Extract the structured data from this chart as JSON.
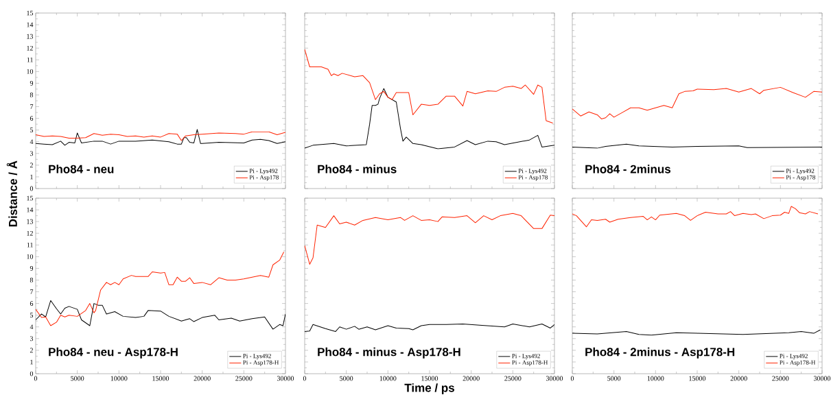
{
  "chart_data": [
    {
      "type": "line",
      "title": "Pho84 - neu",
      "ylabel": "Distance / Å",
      "legend": "bottom right",
      "tick_labels": "y",
      "xlim": [
        0,
        30000
      ],
      "ylim": [
        0,
        15
      ],
      "xticks": [
        0,
        5000,
        10000,
        15000,
        20000,
        25000,
        30000
      ],
      "yticks": [
        0,
        1,
        2,
        3,
        4,
        5,
        6,
        7,
        8,
        9,
        10,
        11,
        12,
        13,
        14,
        15
      ],
      "series": [
        {
          "name": "Pi - Lys492",
          "color": "#000000",
          "x": [
            0,
            1000,
            2000,
            3000,
            3500,
            4000,
            4700,
            5000,
            5500,
            7000,
            8000,
            9000,
            10000,
            12000,
            14000,
            16000,
            17000,
            17500,
            17800,
            18100,
            18500,
            19000,
            19400,
            19800,
            20000,
            22000,
            25000,
            26000,
            27000,
            28000,
            29000,
            30000
          ],
          "values": [
            3.85,
            3.8,
            3.75,
            4.05,
            3.7,
            3.95,
            3.9,
            4.75,
            3.9,
            4.05,
            4.05,
            3.8,
            4.05,
            4.05,
            4.15,
            4.0,
            3.8,
            3.8,
            4.35,
            4.35,
            3.95,
            3.9,
            5.05,
            3.85,
            3.85,
            3.95,
            3.9,
            4.15,
            4.2,
            4.1,
            3.85,
            4.0
          ]
        },
        {
          "name": "Pi - Asp178",
          "color": "#ff2200",
          "x": [
            0,
            1000,
            2000,
            3000,
            4000,
            5000,
            6000,
            7000,
            8000,
            9000,
            10000,
            11000,
            12000,
            13000,
            14000,
            15000,
            16000,
            17000,
            17500,
            18000,
            19000,
            20000,
            22000,
            24000,
            25000,
            26000,
            28000,
            29000,
            30000
          ],
          "values": [
            4.6,
            4.45,
            4.5,
            4.45,
            4.3,
            4.3,
            4.35,
            4.7,
            4.55,
            4.65,
            4.6,
            4.45,
            4.5,
            4.4,
            4.5,
            4.4,
            4.7,
            4.65,
            4.1,
            4.5,
            4.6,
            4.65,
            4.75,
            4.7,
            4.65,
            4.85,
            4.85,
            4.6,
            4.8
          ]
        }
      ]
    },
    {
      "type": "line",
      "title": "Pho84 - minus",
      "legend": "bottom right",
      "tick_labels": false,
      "xlim": [
        0,
        30000
      ],
      "ylim": [
        0,
        15
      ],
      "xticks": [
        0,
        5000,
        10000,
        15000,
        20000,
        25000,
        30000
      ],
      "yticks": [
        0,
        1,
        2,
        3,
        4,
        5,
        6,
        7,
        8,
        9,
        10,
        11,
        12,
        13,
        14,
        15
      ],
      "series": [
        {
          "name": "Pi - Lys492",
          "color": "#000000",
          "x": [
            0,
            1000,
            3500,
            5000,
            7400,
            7800,
            8100,
            8500,
            8800,
            9000,
            9500,
            10000,
            11000,
            11500,
            11800,
            12200,
            13000,
            14000,
            16000,
            18000,
            19500,
            20500,
            22000,
            23000,
            24000,
            27000,
            28000,
            28500,
            30000
          ],
          "values": [
            3.45,
            3.7,
            3.85,
            3.65,
            3.75,
            5.5,
            7.1,
            7.1,
            7.2,
            7.7,
            8.55,
            7.8,
            7.4,
            5.15,
            4.05,
            4.4,
            3.85,
            3.75,
            3.4,
            3.55,
            4.1,
            3.75,
            4.05,
            4.0,
            3.75,
            4.15,
            4.55,
            3.55,
            3.7
          ]
        },
        {
          "name": "Pi - Asp178",
          "color": "#ff2200",
          "x": [
            0,
            600,
            2000,
            2800,
            3200,
            3500,
            4000,
            4500,
            6000,
            7000,
            7800,
            8500,
            9000,
            9500,
            10000,
            10500,
            11000,
            12500,
            13000,
            14000,
            15000,
            16000,
            17000,
            18000,
            19000,
            19500,
            20500,
            22000,
            23000,
            24000,
            25000,
            26000,
            26500,
            27500,
            28000,
            28500,
            29000,
            29800
          ],
          "values": [
            11.9,
            10.4,
            10.4,
            10.2,
            9.65,
            9.8,
            9.65,
            9.85,
            9.55,
            9.65,
            9.05,
            7.6,
            8.1,
            8.3,
            7.8,
            7.6,
            8.2,
            8.2,
            6.3,
            7.2,
            7.1,
            7.2,
            7.9,
            7.9,
            7.05,
            8.3,
            8.1,
            8.35,
            8.3,
            8.65,
            8.75,
            8.55,
            8.85,
            8.05,
            8.85,
            8.65,
            5.8,
            5.6
          ]
        }
      ]
    },
    {
      "type": "line",
      "title": "Pho84 - 2minus",
      "legend": "bottom right",
      "tick_labels": false,
      "xlim": [
        0,
        30000
      ],
      "ylim": [
        0,
        15
      ],
      "xticks": [
        0,
        5000,
        10000,
        15000,
        20000,
        25000,
        30000
      ],
      "yticks": [
        0,
        1,
        2,
        3,
        4,
        5,
        6,
        7,
        8,
        9,
        10,
        11,
        12,
        13,
        14,
        15
      ],
      "series": [
        {
          "name": "Pi - Lys492",
          "color": "#000000",
          "x": [
            0,
            3000,
            4000,
            6500,
            8000,
            12000,
            15000,
            20000,
            21000,
            30000
          ],
          "values": [
            3.55,
            3.45,
            3.6,
            3.8,
            3.65,
            3.55,
            3.6,
            3.65,
            3.5,
            3.55
          ]
        },
        {
          "name": "Pi - Asp178",
          "color": "#ff2200",
          "x": [
            0,
            1000,
            2000,
            3000,
            3500,
            4000,
            4500,
            5000,
            6000,
            7000,
            8000,
            9000,
            10000,
            11000,
            12000,
            12800,
            13500,
            14500,
            15000,
            17000,
            18500,
            20000,
            21500,
            22500,
            23000,
            25000,
            26500,
            28000,
            29000,
            30000
          ],
          "values": [
            6.8,
            6.2,
            6.55,
            6.3,
            5.95,
            6.05,
            6.4,
            6.1,
            6.5,
            6.9,
            6.9,
            6.7,
            6.9,
            7.1,
            6.9,
            8.1,
            8.3,
            8.35,
            8.5,
            8.45,
            8.55,
            8.25,
            8.55,
            8.1,
            8.4,
            8.65,
            8.2,
            7.8,
            8.3,
            8.25
          ]
        }
      ]
    },
    {
      "type": "line",
      "title": "Pho84 - neu - Asp178-H",
      "legend": "bottom right",
      "xlim": [
        0,
        30000
      ],
      "ylim": [
        0,
        15
      ],
      "xticks": [
        0,
        5000,
        10000,
        15000,
        20000,
        25000,
        30000
      ],
      "yticks": [
        0,
        1,
        2,
        3,
        4,
        5,
        6,
        7,
        8,
        9,
        10,
        11,
        12,
        13,
        14,
        15
      ],
      "series": [
        {
          "name": "Pi - Lys492",
          "color": "#000000",
          "x": [
            0,
            700,
            1200,
            1800,
            2500,
            3000,
            3500,
            4000,
            5000,
            5500,
            6500,
            7000,
            7500,
            8000,
            8500,
            9500,
            10500,
            12000,
            13000,
            13500,
            15000,
            16000,
            17500,
            18500,
            19000,
            20000,
            21500,
            22000,
            23500,
            24500,
            26000,
            27500,
            28500,
            29300,
            29700,
            30000
          ],
          "values": [
            4.6,
            5.1,
            4.85,
            6.25,
            5.55,
            5.1,
            5.6,
            5.75,
            5.5,
            4.6,
            4.1,
            6.0,
            5.85,
            5.85,
            5.1,
            5.3,
            4.9,
            4.8,
            4.9,
            5.4,
            5.35,
            4.9,
            4.5,
            4.7,
            4.45,
            4.8,
            5.0,
            4.6,
            4.75,
            4.5,
            4.7,
            4.85,
            3.8,
            4.2,
            4.1,
            5.1
          ]
        },
        {
          "name": "Pi - Asp178-H",
          "color": "#ff2200",
          "x": [
            0,
            700,
            1200,
            1800,
            2500,
            3000,
            3500,
            4000,
            5000,
            6000,
            6500,
            7000,
            7200,
            7800,
            8500,
            9000,
            9500,
            10000,
            10500,
            11500,
            12000,
            13500,
            14000,
            15000,
            15500,
            16000,
            16500,
            17000,
            17500,
            18000,
            18500,
            19000,
            20000,
            21000,
            22000,
            23000,
            24000,
            25000,
            26000,
            27000,
            28000,
            28500,
            29300,
            29800
          ],
          "values": [
            5.5,
            4.8,
            4.85,
            4.1,
            4.4,
            5.0,
            4.85,
            5.0,
            4.9,
            5.4,
            6.0,
            5.2,
            5.4,
            7.15,
            7.8,
            7.6,
            7.8,
            7.6,
            8.1,
            8.4,
            8.3,
            8.3,
            8.7,
            8.6,
            8.65,
            7.6,
            7.6,
            8.25,
            7.9,
            7.9,
            8.2,
            7.7,
            7.8,
            7.6,
            8.2,
            8.0,
            8.0,
            8.1,
            8.25,
            8.4,
            8.25,
            9.3,
            9.7,
            10.4
          ]
        }
      ]
    },
    {
      "type": "line",
      "title": "Pho84 - minus - Asp178-H",
      "xlabel": "Time / ps",
      "legend": "bottom right",
      "tick_labels": "x",
      "xlim": [
        0,
        30000
      ],
      "ylim": [
        0,
        15
      ],
      "xticks": [
        0,
        5000,
        10000,
        15000,
        20000,
        25000,
        30000
      ],
      "yticks": [
        0,
        1,
        2,
        3,
        4,
        5,
        6,
        7,
        8,
        9,
        10,
        11,
        12,
        13,
        14,
        15
      ],
      "series": [
        {
          "name": "Pi - Lys492",
          "color": "#000000",
          "x": [
            0,
            600,
            1000,
            2500,
            3700,
            4200,
            5000,
            6000,
            6500,
            7500,
            8500,
            10000,
            11000,
            12500,
            13000,
            14000,
            15000,
            17000,
            19000,
            21000,
            24000,
            25000,
            27000,
            28500,
            29500,
            30000
          ],
          "values": [
            3.6,
            3.65,
            4.2,
            3.85,
            3.6,
            4.0,
            3.8,
            4.05,
            3.8,
            4.0,
            3.75,
            4.1,
            3.9,
            3.85,
            3.75,
            4.1,
            4.2,
            4.2,
            4.25,
            4.15,
            4.0,
            4.25,
            4.0,
            4.25,
            3.9,
            4.2
          ]
        },
        {
          "name": "Pi - Asp178-H",
          "color": "#ff2200",
          "x": [
            0,
            600,
            1000,
            1500,
            2500,
            3500,
            4200,
            5000,
            6000,
            7000,
            8500,
            10000,
            11500,
            12000,
            13000,
            14000,
            15000,
            16000,
            16500,
            18000,
            19500,
            20500,
            21500,
            22500,
            23500,
            25000,
            26000,
            27500,
            28500,
            29500,
            30000
          ],
          "values": [
            10.95,
            9.35,
            9.9,
            12.7,
            12.5,
            13.5,
            12.8,
            12.95,
            12.7,
            13.1,
            13.35,
            13.15,
            13.35,
            13.1,
            13.5,
            13.1,
            13.15,
            13.0,
            13.4,
            13.35,
            13.5,
            12.9,
            13.5,
            13.15,
            13.5,
            13.7,
            13.5,
            12.4,
            12.4,
            13.55,
            13.5
          ]
        }
      ]
    },
    {
      "type": "line",
      "title": "Pho84 - 2minus - Asp178-H",
      "legend": "bottom right",
      "tick_labels": "x",
      "xlim": [
        0,
        30000
      ],
      "ylim": [
        0,
        15
      ],
      "xticks": [
        0,
        5000,
        10000,
        15000,
        20000,
        25000,
        30000
      ],
      "yticks": [
        0,
        1,
        2,
        3,
        4,
        5,
        6,
        7,
        8,
        9,
        10,
        11,
        12,
        13,
        14,
        15
      ],
      "series": [
        {
          "name": "Pi  - Lys492",
          "color": "#000000",
          "x": [
            0,
            3000,
            6500,
            8000,
            9500,
            12500,
            15000,
            20500,
            26000,
            27500,
            29000,
            29800
          ],
          "values": [
            3.45,
            3.4,
            3.6,
            3.35,
            3.3,
            3.5,
            3.45,
            3.35,
            3.5,
            3.6,
            3.45,
            3.75
          ]
        },
        {
          "name": "Pi - Asp178-H",
          "color": "#ff2200",
          "x": [
            0,
            500,
            1700,
            2300,
            3000,
            4000,
            4500,
            5500,
            7000,
            8500,
            9000,
            9500,
            10000,
            10500,
            12500,
            13500,
            14200,
            15000,
            16000,
            17500,
            18500,
            19000,
            19500,
            20500,
            21500,
            22000,
            23000,
            24000,
            25000,
            25500,
            26000,
            26300,
            26800,
            27300,
            28000,
            28500,
            29500
          ],
          "values": [
            13.65,
            13.5,
            12.55,
            13.15,
            13.1,
            13.2,
            12.95,
            13.2,
            13.35,
            13.45,
            13.15,
            13.4,
            13.15,
            13.55,
            13.7,
            13.5,
            13.1,
            13.5,
            13.8,
            13.65,
            13.65,
            13.85,
            13.5,
            13.7,
            13.6,
            13.65,
            13.25,
            13.5,
            13.55,
            13.8,
            13.7,
            14.3,
            14.1,
            13.75,
            13.65,
            13.85,
            13.65
          ]
        }
      ]
    }
  ]
}
